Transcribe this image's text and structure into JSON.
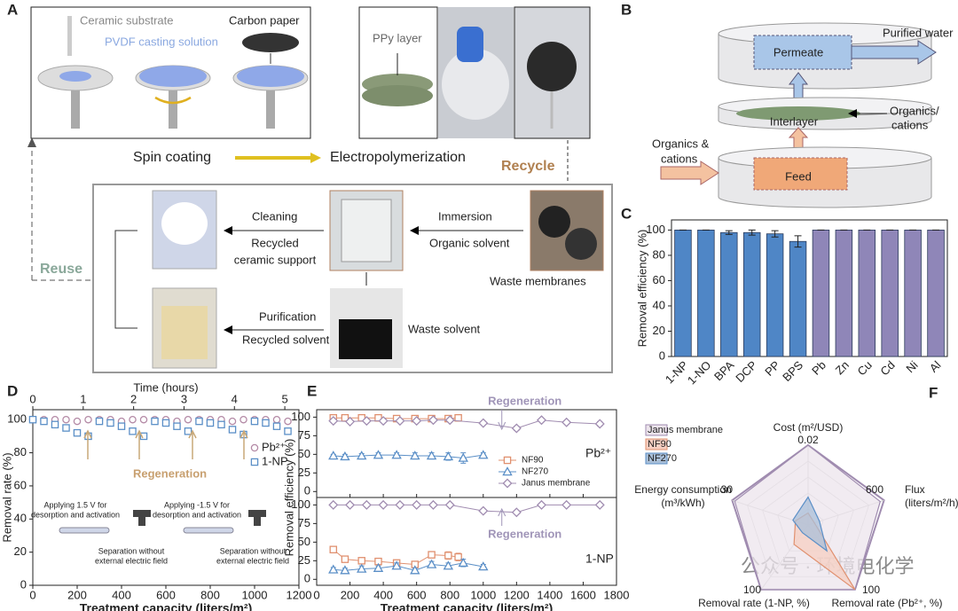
{
  "panel_labels": [
    "A",
    "B",
    "C",
    "D",
    "E",
    "F"
  ],
  "diagram_a": {
    "ceramic_substrate": "Ceramic substrate",
    "pvdf": "PVDF casting solution",
    "carbon_paper": "Carbon paper",
    "ppy_layer": "PPy layer",
    "spin_coating": "Spin coating",
    "electropolymerization": "Electropolymerization",
    "recycle": "Recycle",
    "cleaning": "Cleaning",
    "recycled_support": [
      "Recycled",
      "ceramic support"
    ],
    "immersion": "Immersion",
    "organic_solvent": "Organic solvent",
    "waste_membranes": "Waste membranes",
    "reuse": "Reuse",
    "purification": "Purification",
    "recycled_solvent": "Recycled solvent",
    "waste_solvent": "Waste solvent"
  },
  "diagram_b": {
    "purified_water": "Purified water",
    "permeate": "Permeate",
    "interlayer": "Interlayer",
    "organics_cations_right": [
      "Organics/",
      "cations"
    ],
    "organics_cations_left": [
      "Organics &",
      "cations"
    ],
    "feed": "Feed"
  },
  "watermark": "公众号 · 环境电化学",
  "chart_data": [
    {
      "type": "bar",
      "ylabel": "Removal efficiency (%)",
      "categories": [
        "1-NP",
        "1-NO",
        "BPA",
        "DCP",
        "PP",
        "BPS",
        "Pb",
        "Zn",
        "Cu",
        "Cd",
        "Ni",
        "Al"
      ],
      "values": [
        100,
        100,
        98,
        98,
        97,
        91,
        100,
        100,
        100,
        100,
        100,
        100
      ],
      "errors": [
        0,
        0,
        1.5,
        2,
        2.5,
        4.5,
        0,
        0,
        0,
        0,
        0,
        0
      ],
      "colors": [
        "#4f86c6",
        "#4f86c6",
        "#4f86c6",
        "#4f86c6",
        "#4f86c6",
        "#4f86c6",
        "#8f86b8",
        "#8f86b8",
        "#8f86b8",
        "#8f86b8",
        "#8f86b8",
        "#8f86b8"
      ],
      "ylim": [
        0,
        108
      ],
      "yticks": [
        0,
        20,
        40,
        60,
        80,
        100
      ]
    },
    {
      "type": "scatter",
      "xlabel": "Treatment capacity (liters/m²)",
      "ylabel": "Removal rate (%)",
      "x2label": "Time (hours)",
      "xlim": [
        0,
        1200
      ],
      "xticks": [
        0,
        200,
        400,
        600,
        800,
        1000,
        1200
      ],
      "x2lim": [
        0,
        5.28
      ],
      "x2ticks": [
        0,
        1,
        2,
        3,
        4,
        5
      ],
      "ylim": [
        0,
        106
      ],
      "yticks": [
        0,
        20,
        40,
        60,
        80,
        100
      ],
      "x": [
        0,
        50,
        100,
        150,
        200,
        250,
        300,
        350,
        400,
        450,
        500,
        550,
        600,
        650,
        700,
        750,
        800,
        850,
        900,
        950,
        1000,
        1050,
        1100,
        1150
      ],
      "series": [
        {
          "name": "Pb²⁺",
          "color": "#b48aa6",
          "marker": "circle",
          "values": [
            100,
            100,
            100,
            100,
            99,
            100,
            100,
            100,
            99,
            100,
            100,
            100,
            100,
            99,
            100,
            100,
            100,
            100,
            99,
            100,
            100,
            100,
            100,
            99
          ]
        },
        {
          "name": "1-NP",
          "color": "#5b8fc7",
          "marker": "square",
          "values": [
            100,
            99,
            97,
            95,
            92,
            90,
            99,
            98,
            96,
            93,
            90,
            99,
            98,
            96,
            93,
            99,
            98,
            97,
            94,
            91,
            99,
            98,
            96,
            93
          ]
        }
      ],
      "annotations": [
        "Regeneration",
        [
          "Applying 1.5 V for",
          "desorption and activation"
        ],
        [
          "Applying -1.5 V for",
          "desorption and activation"
        ],
        [
          "Separation without",
          "external electric field"
        ],
        [
          "Separation without",
          "external electric field"
        ]
      ]
    },
    {
      "type": "scatter-errorbar",
      "xlabel": "Treatment capacity (liters/m²)",
      "ylabel": "Removal efficiency (%)",
      "xlim": [
        0,
        1800
      ],
      "xticks": [
        0,
        200,
        400,
        600,
        800,
        1000,
        1200,
        1400,
        1600,
        1800
      ],
      "subplots": [
        {
          "label": "Pb²⁺",
          "annotation": "Regeneration",
          "ylim": [
            -8,
            110
          ],
          "yticks": [
            0,
            25,
            50,
            75,
            100
          ],
          "series": [
            {
              "name": "NF90",
              "color": "#e0906f",
              "marker": "square",
              "x": [
                100,
                170,
                270,
                370,
                480,
                590,
                690,
                790,
                850
              ],
              "values": [
                99,
                99,
                99,
                99,
                98,
                98,
                98,
                98,
                99
              ],
              "errors": [
                1,
                1,
                1,
                1,
                1,
                1,
                1,
                1,
                1
              ]
            },
            {
              "name": "NF270",
              "color": "#5b8fc7",
              "marker": "triangle",
              "x": [
                100,
                170,
                270,
                370,
                480,
                590,
                690,
                790,
                880,
                1000
              ],
              "values": [
                48,
                47,
                48,
                49,
                49,
                48,
                48,
                47,
                45,
                49
              ],
              "errors": [
                2,
                3,
                3,
                3,
                3,
                4,
                4,
                5,
                7,
                3
              ]
            },
            {
              "name": "Janus membrane",
              "color": "#a08cb0",
              "marker": "diamond",
              "x": [
                100,
                200,
                300,
                400,
                500,
                600,
                700,
                800,
                1000,
                1200,
                1350,
                1500,
                1700
              ],
              "values": [
                95,
                94,
                95,
                95,
                95,
                95,
                96,
                96,
                92,
                85,
                96,
                93,
                91
              ],
              "errors": [
                2,
                2,
                2,
                2,
                2,
                2,
                2,
                2,
                2,
                3,
                2,
                2,
                3
              ]
            }
          ]
        },
        {
          "label": "1-NP",
          "annotation": "Regeneration",
          "ylim": [
            -8,
            110
          ],
          "yticks": [
            0,
            25,
            50,
            75,
            100
          ],
          "series": [
            {
              "color": "#e0906f",
              "marker": "square",
              "x": [
                100,
                170,
                270,
                370,
                480,
                590,
                690,
                790,
                850
              ],
              "values": [
                40,
                27,
                25,
                24,
                22,
                20,
                33,
                32,
                30
              ],
              "errors": [
                4,
                3,
                3,
                3,
                3,
                3,
                4,
                5,
                5
              ]
            },
            {
              "color": "#5b8fc7",
              "marker": "triangle",
              "x": [
                100,
                170,
                270,
                370,
                480,
                590,
                690,
                790,
                880,
                1000
              ],
              "values": [
                13,
                12,
                14,
                15,
                18,
                12,
                20,
                18,
                22,
                17
              ],
              "errors": [
                3,
                3,
                4,
                3,
                4,
                3,
                4,
                4,
                5,
                3
              ]
            },
            {
              "color": "#a08cb0",
              "marker": "diamond",
              "x": [
                100,
                200,
                300,
                400,
                500,
                600,
                700,
                800,
                1000,
                1200,
                1350,
                1500,
                1700
              ],
              "values": [
                100,
                100,
                100,
                100,
                100,
                100,
                100,
                100,
                92,
                90,
                100,
                100,
                100
              ],
              "errors": [
                1,
                1,
                1,
                1,
                1,
                1,
                1,
                1,
                2,
                2,
                1,
                1,
                1
              ]
            }
          ]
        }
      ]
    },
    {
      "type": "radar",
      "axes": [
        {
          "label": [
            "Cost (m²/USD)"
          ],
          "max": 0.02
        },
        {
          "label": [
            "Flux",
            "(liters/m²/h)"
          ],
          "max": 600
        },
        {
          "label": [
            "Removal rate (Pb²⁺, %)"
          ],
          "max": 100
        },
        {
          "label": [
            "Removal rate (1-NP, %)"
          ],
          "max": 100
        },
        {
          "label": [
            "Energy consumption",
            "(m³/kWh)"
          ],
          "max": 30
        }
      ],
      "series": [
        {
          "name": "Janus membrane",
          "color": "#a08cb0",
          "fill": "#ece4ec",
          "values": [
            0.02,
            570,
            100,
            100,
            29
          ]
        },
        {
          "name": "NF90",
          "color": "#e0906f",
          "fill": "#f6cfc2",
          "values": [
            0.003,
            50,
            100,
            30,
            5
          ]
        },
        {
          "name": "NF270",
          "color": "#5b8fc7",
          "fill": "#a9bfd8",
          "values": [
            0.007,
            90,
            40,
            12,
            6
          ]
        }
      ]
    }
  ]
}
